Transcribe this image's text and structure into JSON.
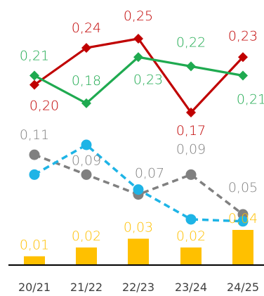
{
  "chart_data": {
    "type": "bar+line",
    "categories": [
      "20/21",
      "21/22",
      "22/23",
      "23/24",
      "24/25"
    ],
    "series": [
      {
        "kind": "line",
        "style": "solid",
        "marker": "diamond",
        "color": "#C00000",
        "values": [
          0.2,
          0.24,
          0.25,
          0.17,
          0.23
        ],
        "labels": [
          "0,20",
          "0,24",
          "0,25",
          "0,17",
          "0,23"
        ]
      },
      {
        "kind": "line",
        "style": "solid",
        "marker": "diamond",
        "color": "#1FAA50",
        "values": [
          0.21,
          0.18,
          0.23,
          0.22,
          0.21
        ],
        "labels": [
          "0,21",
          "0,18",
          "0,23",
          "0,22",
          "0,21"
        ]
      },
      {
        "kind": "line",
        "style": "dashed",
        "marker": "circle",
        "color": "#808080",
        "values": [
          0.11,
          0.09,
          0.07,
          0.09,
          0.05
        ],
        "labels": [
          "0,11",
          "0,09",
          "0,07",
          "0,09",
          "0,05"
        ]
      },
      {
        "kind": "line",
        "style": "dashed",
        "marker": "circle",
        "color": "#1EB4E6",
        "values": [
          0.09,
          0.12,
          0.075,
          0.045,
          0.043
        ],
        "labels": []
      },
      {
        "kind": "bar",
        "color": "#FFC000",
        "values": [
          0.01,
          0.02,
          0.03,
          0.02,
          0.04
        ],
        "labels": [
          "0,01",
          "0,02",
          "0,03",
          "0,02",
          "0,04"
        ]
      }
    ],
    "grid": false,
    "legend": "none"
  }
}
